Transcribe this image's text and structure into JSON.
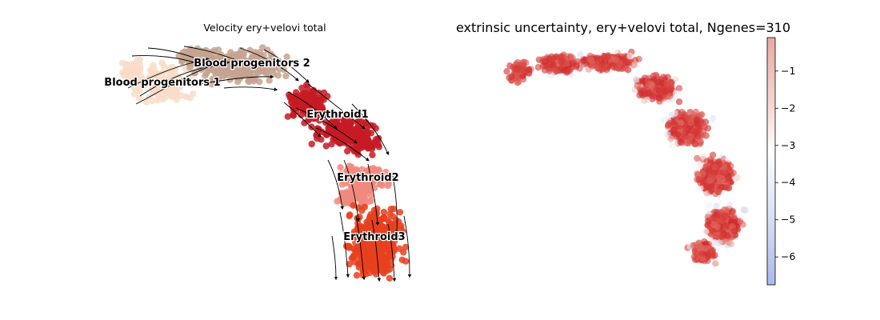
{
  "chart_data": [
    {
      "type": "scatter",
      "title": "Velocity ery+velovi total",
      "xlabel": "",
      "ylabel": "",
      "grid": false,
      "legend": "on data",
      "overlay": "streamlines",
      "clusters": [
        {
          "name": "Blood progenitors 1",
          "color": "#f9dcc8"
        },
        {
          "name": "Blood progenitors 2",
          "color": "#c5a391"
        },
        {
          "name": "Erythroid1",
          "color": "#c51b25"
        },
        {
          "name": "Erythroid2",
          "color": "#f18a7e"
        },
        {
          "name": "Erythroid3",
          "color": "#e7411f"
        }
      ]
    },
    {
      "type": "scatter",
      "title": "extrinsic uncertainty, ery+velovi total, Ngenes=310",
      "xlabel": "",
      "ylabel": "",
      "grid": false,
      "colormap": "coolwarm",
      "colorbar": {
        "range": [
          -6.75,
          -0.1
        ],
        "ticks": [
          -1,
          -2,
          -3,
          -4,
          -5,
          -6
        ],
        "tick_labels": [
          "−1",
          "−2",
          "−3",
          "−4",
          "−5",
          "−6"
        ]
      }
    }
  ]
}
